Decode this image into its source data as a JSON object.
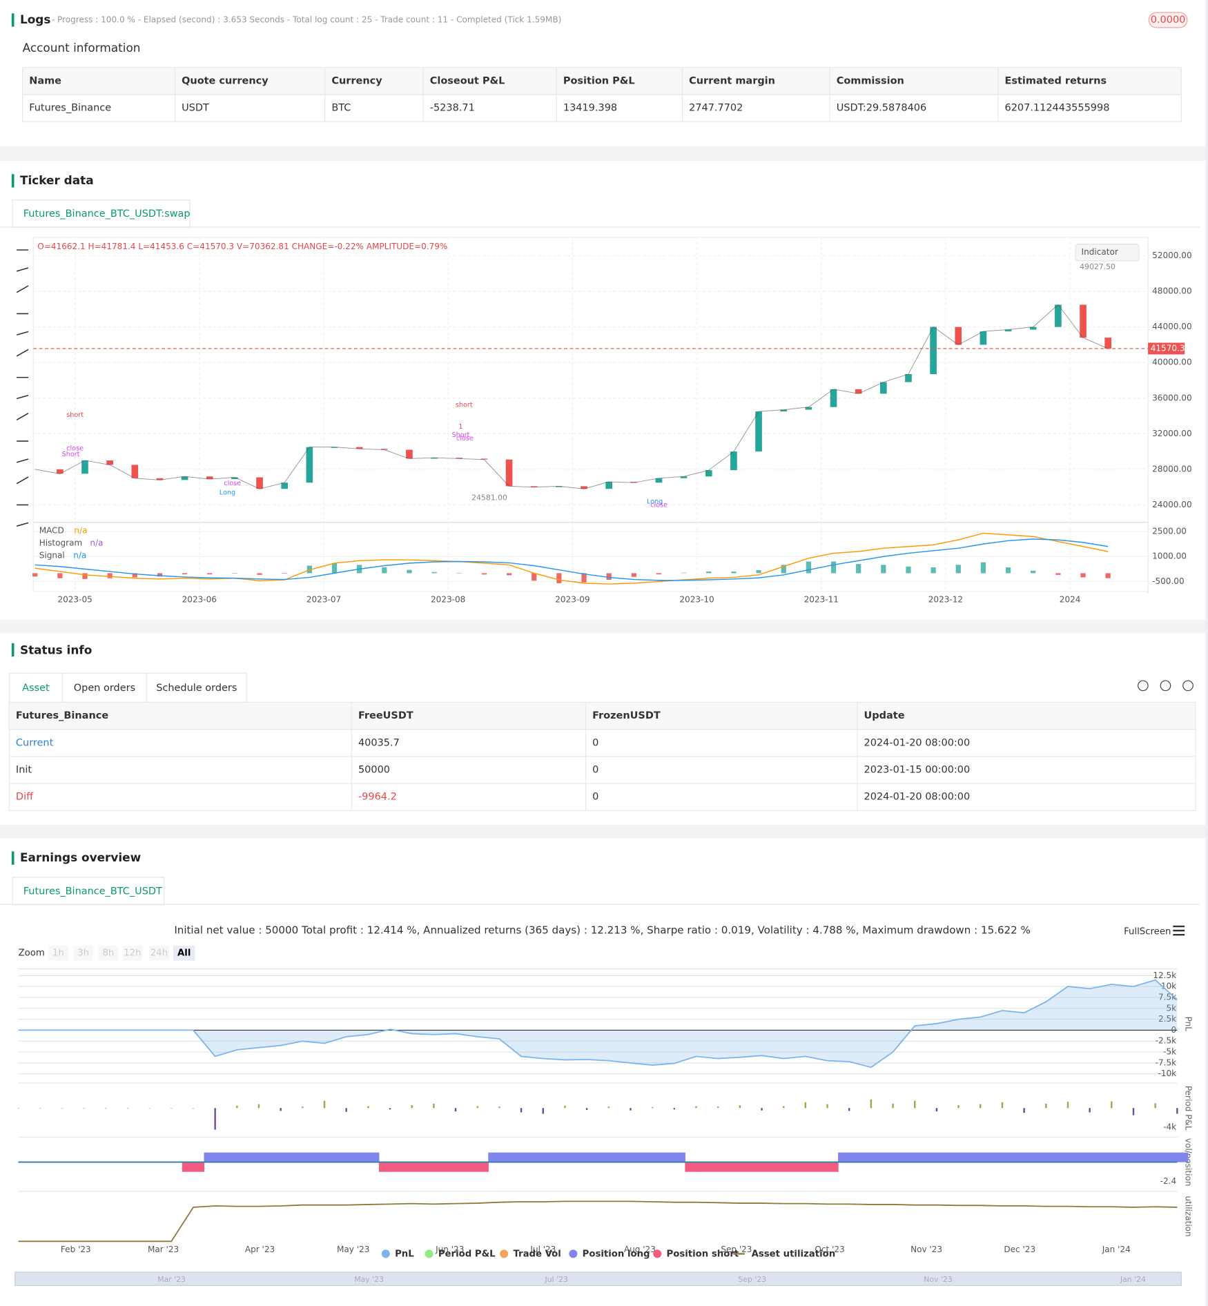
{
  "logs": {
    "title": "Logs",
    "summary": "- Progress : 100.0 % - Elapsed (second) : 3.653 Seconds - Total log count : 25 - Trade count : 11 - Completed (Tick 1.59MB)",
    "badge": "0.0000"
  },
  "account": {
    "title": "Account information",
    "columns": [
      "Name",
      "Quote currency",
      "Currency",
      "Closeout P&L",
      "Position P&L",
      "Current margin",
      "Commission",
      "Estimated returns"
    ],
    "rows": [
      [
        "Futures_Binance",
        "USDT",
        "BTC",
        "-5238.71",
        "13419.398",
        "2747.7702",
        "USDT:29.5878406",
        "6207.112443555998"
      ]
    ]
  },
  "ticker": {
    "title": "Ticker data",
    "tab": "Futures_Binance_BTC_USDT:swap"
  },
  "status": {
    "title": "Status info",
    "tabs": [
      "Asset",
      "Open orders",
      "Schedule orders"
    ],
    "columns": [
      "Futures_Binance",
      "FreeUSDT",
      "FrozenUSDT",
      "Update"
    ],
    "rows": [
      [
        "Current",
        "40035.7",
        "0",
        "2024-01-20 08:00:00"
      ],
      [
        "Init",
        "50000",
        "0",
        "2023-01-15 00:00:00"
      ],
      [
        "Diff",
        "-9964.2",
        "0",
        "2024-01-20 08:00:00"
      ]
    ]
  },
  "earnings": {
    "title": "Earnings overview",
    "tab": "Futures_Binance_BTC_USDT",
    "summary": "Initial net value : 50000 Total profit : 12.414 %, Annualized returns (365 days) : 12.213 %, Sharpe ratio : 0.019, Volatility : 4.788 %, Maximum drawdown : 15.622 %",
    "fullscreen": "FullScreen",
    "zoom_label": "Zoom",
    "zoom_buttons": [
      "1h",
      "3h",
      "8h",
      "12h",
      "24h",
      "All"
    ],
    "xtick_labels": [
      "Feb '23",
      "Mar '23",
      "Apr '23",
      "May '23",
      "Jun '23",
      "Jul '23",
      "Aug '23",
      "Sep '23",
      "Oct '23",
      "Nov '23",
      "Dec '23",
      "Jan '24"
    ],
    "navigator_labels": [
      "Mar '23",
      "May '23",
      "Jul '23",
      "Sep '23",
      "Nov '23",
      "Jan '24"
    ]
  },
  "chart_data": [
    {
      "type": "line",
      "ohlc_text": "O=41662.1 H=41781.4 L=41453.6 C=41570.3 V=70362.81 CHANGE=-0.22% AMPLITUDE=0.79%",
      "indicator_button": "Indicator",
      "color": "#26a69a",
      "values": [
        28000,
        27500,
        29000,
        28500,
        27000,
        26800,
        27200,
        26900,
        27100,
        25800,
        26500,
        30500,
        30500,
        30300,
        30200,
        29200,
        29300,
        29200,
        29100,
        26100,
        26000,
        26100,
        25800,
        26600,
        26500,
        27000,
        27200,
        27900,
        30000,
        34500,
        34700,
        35000,
        37000,
        36500,
        37800,
        38700,
        44000,
        42000,
        43500,
        43700,
        44000,
        46500,
        42800,
        41570
      ],
      "last_price": {
        "value": 41570.3,
        "label": "41570.30"
      },
      "high_label": {
        "value": 49027.5,
        "label": "49027.50"
      },
      "low_label": {
        "value": 24581,
        "label": "24581.00"
      },
      "xtick_labels": [
        "2023-05",
        "2023-06",
        "2023-07",
        "2023-08",
        "2023-09",
        "2023-10",
        "2023-11",
        "2023-12",
        "2024"
      ],
      "yticks": [
        {
          "value": 24000,
          "label": "24000.00"
        },
        {
          "value": 28000,
          "label": "28000.00"
        },
        {
          "value": 32000,
          "label": "32000.00"
        },
        {
          "value": 36000,
          "label": "36000.00"
        },
        {
          "value": 40000,
          "label": "40000.00"
        },
        {
          "value": 44000,
          "label": "44000.00"
        },
        {
          "value": 48000,
          "label": "48000.00"
        },
        {
          "value": 52000,
          "label": "52000.00"
        }
      ],
      "ylim": [
        22130,
        54060
      ],
      "annotations": [
        "short",
        "Short",
        "close",
        "short",
        "1",
        "Short",
        "close",
        "close",
        "Long",
        "Long",
        "close"
      ]
    },
    {
      "type": "line",
      "series": [
        {
          "name": "MACD",
          "status": "n/a",
          "color": "#ff9800",
          "values": [
            300,
            100,
            -100,
            -200,
            -300,
            -350,
            -300,
            -350,
            -300,
            -450,
            -400,
            200,
            600,
            750,
            800,
            800,
            750,
            700,
            600,
            500,
            0,
            -400,
            -600,
            -650,
            -600,
            -500,
            -400,
            -300,
            -250,
            -100,
            400,
            900,
            1200,
            1300,
            1500,
            1600,
            1700,
            2000,
            2400,
            2300,
            2200,
            1900,
            1600,
            1300
          ]
        },
        {
          "name": "Histogram",
          "status": "n/a",
          "color": "#26a69a",
          "negative_color": "#e53935",
          "values": [
            -200,
            -300,
            -350,
            -300,
            -250,
            -200,
            -70,
            -70,
            0,
            -100,
            -20,
            450,
            600,
            500,
            350,
            200,
            70,
            0,
            -80,
            -120,
            -450,
            -600,
            -550,
            -400,
            -220,
            -70,
            30,
            100,
            100,
            180,
            500,
            700,
            700,
            550,
            500,
            400,
            350,
            500,
            650,
            350,
            150,
            -100,
            -250,
            -300
          ]
        },
        {
          "name": "Signal",
          "status": "n/a",
          "color": "#2196f3",
          "values": [
            500,
            400,
            250,
            100,
            -50,
            -150,
            -230,
            -280,
            -300,
            -350,
            -380,
            -250,
            0,
            250,
            450,
            600,
            680,
            700,
            680,
            620,
            450,
            200,
            -50,
            -250,
            -380,
            -430,
            -430,
            -400,
            -350,
            -280,
            -100,
            200,
            500,
            750,
            1000,
            1200,
            1350,
            1500,
            1750,
            1950,
            2050,
            2000,
            1850,
            1600
          ]
        }
      ],
      "yticks": [
        {
          "value": -500,
          "label": "-500.00"
        },
        {
          "value": 1000,
          "label": "1000.00"
        },
        {
          "value": 2500,
          "label": "2500.00"
        }
      ],
      "ylim": [
        -1100,
        3000
      ]
    },
    {
      "type": "area",
      "y_label": "PnL",
      "series": [
        {
          "name": "PnL",
          "color": "#7cb5ec",
          "values": [
            0,
            0,
            0,
            0,
            0,
            0,
            0,
            0,
            0,
            -6000,
            -4500,
            -4000,
            -3500,
            -2500,
            -3000,
            -1500,
            -1000,
            200,
            -800,
            -1000,
            -800,
            -1500,
            -2000,
            -6000,
            -6500,
            -6800,
            -6700,
            -7000,
            -7500,
            -8000,
            -7600,
            -6000,
            -6500,
            -6200,
            -5800,
            -6500,
            -6000,
            -7000,
            -7200,
            -8500,
            -5000,
            1000,
            1500,
            2500,
            3000,
            4500,
            4000,
            6500,
            10000,
            9500,
            10500,
            10000,
            11500,
            7000
          ]
        }
      ],
      "yticks": [
        {
          "value": -10000,
          "label": "-10k"
        },
        {
          "value": -7500,
          "label": "-7.5k"
        },
        {
          "value": -5000,
          "label": "-5k"
        },
        {
          "value": -2500,
          "label": "-2.5k"
        },
        0,
        {
          "value": 2500,
          "label": "2.5k"
        },
        {
          "value": 5000,
          "label": "5k"
        },
        {
          "value": 7500,
          "label": "7.5k"
        },
        {
          "value": 10000,
          "label": "10k"
        },
        {
          "value": 12500,
          "label": "12.5k"
        }
      ],
      "ylim": [
        -11150,
        14030
      ]
    },
    {
      "type": "bar",
      "y_label": "Period P&L",
      "series": [
        {
          "name": "Period P&L",
          "color": "#90ed7d",
          "positive_color": "#9aab45",
          "negative_color": "#6b4e96",
          "values": [
            0,
            0,
            0,
            0,
            0,
            0,
            0,
            0,
            0,
            -4500,
            500,
            800,
            -600,
            300,
            1500,
            -800,
            400,
            -300,
            600,
            900,
            -700,
            400,
            300,
            -900,
            -1200,
            500,
            -400,
            300,
            -500,
            200,
            -300,
            400,
            300,
            600,
            -500,
            400,
            1200,
            800,
            -600,
            1800,
            900,
            1500,
            -700,
            600,
            800,
            1200,
            -1000,
            900,
            1300,
            -900,
            1400,
            -1500,
            1000,
            -1200
          ]
        }
      ],
      "yticks": [
        {
          "value": -4000,
          "label": "-4k"
        }
      ],
      "ylim": [
        -5200,
        5200
      ]
    },
    {
      "type": "bar",
      "y_label": "vol/position",
      "series": [
        {
          "name": "Trade Vol",
          "color": "#f7a35c",
          "values": [
            null,
            null,
            null,
            null,
            null,
            null,
            null,
            null,
            -1.2,
            1.2,
            null,
            null,
            null,
            null,
            null,
            null,
            null,
            -1.2,
            null,
            null,
            null,
            null,
            1.2,
            null,
            null,
            null,
            null,
            null,
            null,
            null,
            null,
            -1.2,
            null,
            null,
            null,
            null,
            null,
            null,
            1.2,
            null,
            null,
            null,
            null,
            null,
            null,
            null,
            null,
            null,
            null,
            null,
            null,
            null,
            null,
            null
          ]
        },
        {
          "name": "Position long",
          "color": "#8085e9",
          "values": [
            null,
            null,
            null,
            null,
            null,
            null,
            null,
            null,
            null,
            1.2,
            1.2,
            1.2,
            1.2,
            1.2,
            1.2,
            1.2,
            1.2,
            null,
            null,
            null,
            null,
            null,
            1.2,
            1.2,
            1.2,
            1.2,
            1.2,
            1.2,
            1.2,
            1.2,
            1.2,
            null,
            null,
            null,
            null,
            null,
            null,
            null,
            1.2,
            1.2,
            1.2,
            1.2,
            1.2,
            1.2,
            1.2,
            1.2,
            1.2,
            1.2,
            1.2,
            1.2,
            1.2,
            1.2,
            1.2,
            1.2
          ]
        },
        {
          "name": "Position short",
          "color": "#f15c80",
          "values": [
            null,
            null,
            null,
            null,
            null,
            null,
            null,
            null,
            -1.2,
            null,
            null,
            null,
            null,
            null,
            null,
            null,
            null,
            -1.2,
            -1.2,
            -1.2,
            -1.2,
            -1.2,
            null,
            null,
            null,
            null,
            null,
            null,
            null,
            null,
            null,
            -1.2,
            -1.2,
            -1.2,
            -1.2,
            -1.2,
            -1.2,
            -1.2,
            null,
            null,
            null,
            null,
            null,
            null,
            null,
            null,
            null,
            null,
            null,
            null,
            null,
            null,
            null,
            null
          ]
        }
      ],
      "yticks": [
        -2.4
      ],
      "ylim": [
        -3.1,
        3.1
      ]
    },
    {
      "type": "line",
      "y_label": "utilization",
      "series": [
        {
          "name": "Asset utilization",
          "color": "#8b7a3a",
          "values": [
            0,
            0,
            0,
            0,
            0,
            0,
            0,
            0,
            0.75,
            0.78,
            0.77,
            0.77,
            0.78,
            0.8,
            0.8,
            0.8,
            0.81,
            0.82,
            0.83,
            0.82,
            0.83,
            0.84,
            0.86,
            0.87,
            0.87,
            0.88,
            0.88,
            0.88,
            0.88,
            0.87,
            0.86,
            0.86,
            0.85,
            0.84,
            0.84,
            0.83,
            0.83,
            0.82,
            0.82,
            0.81,
            0.81,
            0.8,
            0.8,
            0.79,
            0.79,
            0.78,
            0.78,
            0.77,
            0.77,
            0.76,
            0.76,
            0.75,
            0.76,
            0.75
          ]
        }
      ],
      "ylim": [
        0,
        1.1
      ]
    }
  ]
}
